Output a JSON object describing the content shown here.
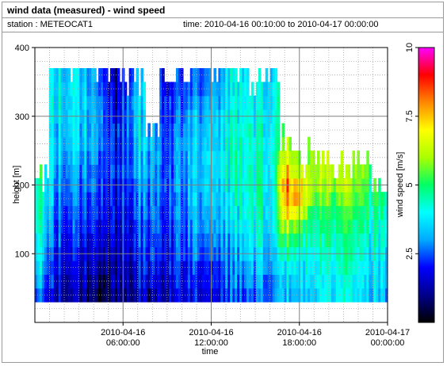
{
  "header": {
    "title": "wind data (measured) - wind speed",
    "station": "station : METEOCAT1",
    "time_range": "time: 2010-04-16 00:10:00 to 2010-04-17 00:00:00"
  },
  "chart_data": {
    "type": "heatmap",
    "title": "wind data (measured) - wind speed",
    "xlabel": "time",
    "ylabel": "height [m]",
    "colorbar_label": "wind speed [m/s]",
    "x_range": [
      "2010-04-16 00:10:00",
      "2010-04-17 00:00:00"
    ],
    "y_range": [
      0,
      400
    ],
    "color_range": [
      0,
      10
    ],
    "x_ticks": [
      {
        "line1": "2010-04-16",
        "line2": "06:00:00",
        "hour": 6
      },
      {
        "line1": "2010-04-16",
        "line2": "12:00:00",
        "hour": 12
      },
      {
        "line1": "2010-04-16",
        "line2": "18:00:00",
        "hour": 18
      },
      {
        "line1": "2010-04-17",
        "line2": "00:00:00",
        "hour": 24
      }
    ],
    "y_ticks": [
      "100",
      "200",
      "300",
      "400"
    ],
    "y_tick_values": [
      100,
      200,
      300,
      400
    ],
    "colorbar_ticks": [
      "2.5",
      "5",
      "7.5",
      "10"
    ],
    "colorbar_tick_values": [
      2.5,
      5,
      7.5,
      10
    ],
    "height_levels_m": [
      40,
      60,
      80,
      100,
      120,
      140,
      160,
      180,
      200,
      220,
      240,
      260,
      280,
      300,
      320,
      340,
      360
    ],
    "time_profile": [
      {
        "hour": 0.5,
        "top": 200,
        "ws": [
          2.5,
          3.0,
          3.3,
          3.6,
          3.8,
          4.0,
          4.2,
          4.3,
          4.4,
          4.5,
          4.5,
          4.5,
          4.5,
          4.5,
          4.5,
          4.5,
          4.5
        ]
      },
      {
        "hour": 1.5,
        "top": 360,
        "ws": [
          1.6,
          1.8,
          2.0,
          2.2,
          2.4,
          2.6,
          2.8,
          3.0,
          3.2,
          3.3,
          3.4,
          3.5,
          3.6,
          3.7,
          3.8,
          3.8,
          3.8
        ]
      },
      {
        "hour": 3.0,
        "top": 360,
        "ws": [
          1.2,
          1.4,
          1.6,
          1.8,
          2.0,
          2.2,
          2.4,
          2.6,
          2.8,
          3.0,
          3.2,
          3.4,
          3.5,
          3.6,
          3.7,
          3.8,
          3.6
        ]
      },
      {
        "hour": 4.5,
        "top": 360,
        "ws": [
          0.5,
          0.8,
          1.2,
          1.4,
          1.6,
          1.8,
          2.0,
          2.2,
          2.4,
          2.5,
          2.6,
          2.7,
          2.8,
          2.9,
          2.8,
          2.6,
          2.4
        ]
      },
      {
        "hour": 5.5,
        "top": 360,
        "ws": [
          0.6,
          0.9,
          1.0,
          1.2,
          1.3,
          1.4,
          1.5,
          1.6,
          1.7,
          1.8,
          1.8,
          1.7,
          1.6,
          1.4,
          1.2,
          1.0,
          0.9
        ]
      },
      {
        "hour": 7.0,
        "top": 340,
        "ws": [
          1.6,
          1.8,
          2.0,
          2.2,
          2.4,
          2.6,
          2.8,
          3.0,
          3.2,
          3.4,
          3.6,
          3.7,
          3.8,
          3.9,
          3.9,
          3.9,
          3.9
        ]
      },
      {
        "hour": 8.0,
        "top": 280,
        "ws": [
          0.9,
          1.4,
          1.8,
          2.0,
          2.2,
          2.3,
          2.5,
          2.6,
          2.7,
          2.8,
          2.9,
          3.0,
          3.0,
          3.0,
          3.0,
          3.0,
          3.0
        ]
      },
      {
        "hour": 9.0,
        "top": 360,
        "ws": [
          1.6,
          1.8,
          2.0,
          2.1,
          2.2,
          2.3,
          2.4,
          2.5,
          2.6,
          2.6,
          2.6,
          2.6,
          2.5,
          2.4,
          2.2,
          2.0,
          1.8
        ]
      },
      {
        "hour": 10.5,
        "top": 360,
        "ws": [
          2.0,
          2.2,
          2.4,
          2.6,
          2.8,
          3.0,
          3.1,
          3.2,
          3.3,
          3.4,
          3.4,
          3.4,
          3.3,
          3.2,
          3.0,
          2.8,
          2.6
        ]
      },
      {
        "hour": 12.0,
        "top": 360,
        "ws": [
          1.8,
          2.0,
          2.2,
          2.5,
          2.8,
          3.0,
          3.2,
          3.4,
          3.5,
          3.6,
          3.6,
          3.5,
          3.4,
          3.3,
          3.2,
          3.0,
          2.8
        ]
      },
      {
        "hour": 13.5,
        "top": 360,
        "ws": [
          2.6,
          2.8,
          3.0,
          3.2,
          3.4,
          3.6,
          3.8,
          4.0,
          4.1,
          4.2,
          4.3,
          4.3,
          4.3,
          4.2,
          4.1,
          4.0,
          3.9
        ]
      },
      {
        "hour": 15.0,
        "top": 340,
        "ws": [
          2.4,
          2.8,
          3.2,
          3.5,
          3.8,
          4.0,
          4.2,
          4.3,
          4.4,
          4.3,
          4.2,
          4.1,
          4.0,
          3.9,
          3.8,
          3.7,
          3.6
        ]
      },
      {
        "hour": 16.2,
        "top": 340,
        "ws": [
          3.2,
          3.4,
          3.6,
          3.8,
          4.0,
          4.1,
          4.2,
          4.3,
          4.4,
          4.5,
          4.6,
          4.6,
          4.5,
          4.4,
          4.3,
          4.2,
          4.0
        ]
      },
      {
        "hour": 17.0,
        "top": 260,
        "ws": [
          3.4,
          3.6,
          4.0,
          4.5,
          5.5,
          6.5,
          7.2,
          7.8,
          8.2,
          7.6,
          6.8,
          6.0,
          5.6,
          5.4,
          5.3,
          5.2,
          5.2
        ]
      },
      {
        "hour": 18.0,
        "top": 220,
        "ws": [
          3.0,
          3.4,
          3.8,
          4.2,
          4.6,
          5.2,
          6.5,
          7.5,
          7.0,
          6.0,
          5.6,
          5.5,
          5.5,
          5.5,
          5.5,
          5.5,
          5.5
        ]
      },
      {
        "hour": 19.0,
        "top": 240,
        "ws": [
          3.6,
          3.8,
          4.0,
          4.2,
          4.4,
          4.6,
          5.0,
          5.4,
          5.8,
          6.0,
          6.0,
          6.0,
          6.0,
          6.0,
          6.0,
          6.0,
          6.0
        ]
      },
      {
        "hour": 20.5,
        "top": 220,
        "ws": [
          3.8,
          4.0,
          4.2,
          4.4,
          4.6,
          4.9,
          5.2,
          5.6,
          6.0,
          6.2,
          6.2,
          6.2,
          6.2,
          6.2,
          6.2,
          6.2,
          6.2
        ]
      },
      {
        "hour": 22.0,
        "top": 220,
        "ws": [
          3.6,
          3.8,
          4.0,
          4.2,
          4.4,
          4.6,
          4.9,
          5.2,
          5.5,
          5.7,
          5.7,
          5.7,
          5.7,
          5.7,
          5.7,
          5.7,
          5.7
        ]
      },
      {
        "hour": 23.5,
        "top": 200,
        "ws": [
          3.4,
          3.6,
          3.8,
          4.0,
          4.2,
          4.4,
          4.6,
          4.9,
          5.2,
          5.4,
          5.4,
          5.4,
          5.4,
          5.4,
          5.4,
          5.4,
          5.4
        ]
      }
    ],
    "grid": true
  }
}
